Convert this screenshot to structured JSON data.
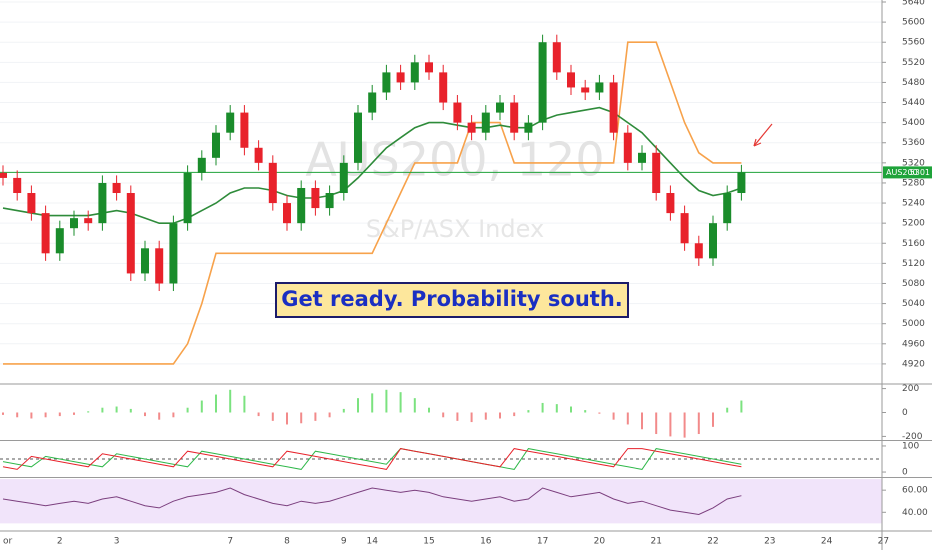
{
  "chart_data": [
    {
      "type": "candlestick",
      "title": "AUS200, 120",
      "subtitle": "S&P/ASX Index",
      "annotation": "Get ready. Probability south.",
      "categories": [
        "or",
        null,
        null,
        null,
        "2",
        null,
        null,
        null,
        "3",
        null,
        null,
        null,
        null,
        null,
        null,
        null,
        "7",
        null,
        null,
        null,
        "8",
        null,
        null,
        null,
        "9",
        null,
        "14",
        null,
        null,
        null,
        "15",
        null,
        null,
        null,
        "16",
        null,
        null,
        null,
        "17",
        null,
        null,
        null,
        "20",
        null,
        null,
        null,
        "21",
        null,
        null,
        null,
        "22",
        null,
        null,
        null,
        "23",
        null,
        null,
        null,
        "24",
        null,
        null,
        null,
        "27"
      ],
      "open": [
        5300,
        5290,
        5260,
        5220,
        5140,
        5190,
        5210,
        5200,
        5280,
        5260,
        5100,
        5150,
        5080,
        5200,
        5300,
        5330,
        5380,
        5420,
        5350,
        5320,
        5240,
        5200,
        5270,
        5230,
        5260,
        5320,
        5420,
        5460,
        5500,
        5480,
        5520,
        5500,
        5440,
        5400,
        5380,
        5420,
        5440,
        5380,
        5400,
        5560,
        5500,
        5470,
        5460,
        5480,
        5380,
        5320,
        5340,
        5260,
        5220,
        5160,
        5130,
        5200,
        5260,
        null,
        null,
        null,
        null,
        null,
        null,
        null,
        null,
        null,
        null
      ],
      "high": [
        5315,
        5305,
        5275,
        5235,
        5205,
        5225,
        5225,
        5295,
        5295,
        5275,
        5165,
        5165,
        5215,
        5315,
        5345,
        5395,
        5435,
        5435,
        5365,
        5335,
        5255,
        5285,
        5285,
        5275,
        5335,
        5435,
        5475,
        5515,
        5515,
        5535,
        5535,
        5515,
        5455,
        5415,
        5435,
        5455,
        5455,
        5415,
        5575,
        5575,
        5515,
        5485,
        5495,
        5495,
        5395,
        5355,
        5355,
        5275,
        5235,
        5175,
        5215,
        5275,
        5316,
        null,
        null,
        null,
        null,
        null,
        null,
        null,
        null,
        null,
        null
      ],
      "low": [
        5275,
        5245,
        5205,
        5125,
        5125,
        5175,
        5185,
        5185,
        5245,
        5085,
        5085,
        5065,
        5065,
        5185,
        5285,
        5315,
        5365,
        5335,
        5305,
        5225,
        5185,
        5185,
        5215,
        5215,
        5245,
        5305,
        5405,
        5445,
        5465,
        5465,
        5485,
        5425,
        5385,
        5365,
        5365,
        5405,
        5365,
        5365,
        5385,
        5485,
        5455,
        5445,
        5445,
        5365,
        5305,
        5305,
        5245,
        5205,
        5145,
        5115,
        5115,
        5185,
        5245,
        null,
        null,
        null,
        null,
        null,
        null,
        null,
        null,
        null,
        null
      ],
      "close": [
        5290,
        5260,
        5220,
        5140,
        5190,
        5210,
        5200,
        5280,
        5260,
        5100,
        5150,
        5080,
        5200,
        5300,
        5330,
        5380,
        5420,
        5350,
        5320,
        5240,
        5200,
        5270,
        5230,
        5260,
        5320,
        5420,
        5460,
        5500,
        5480,
        5520,
        5500,
        5440,
        5400,
        5380,
        5420,
        5440,
        5380,
        5400,
        5560,
        5500,
        5470,
        5460,
        5480,
        5380,
        5320,
        5340,
        5260,
        5220,
        5160,
        5130,
        5200,
        5260,
        5301,
        null,
        null,
        null,
        null,
        null,
        null,
        null,
        null,
        null,
        null
      ],
      "up_color": "#1a8c2b",
      "down_color": "#e8222b",
      "lines": [
        {
          "color": "#f7a24b",
          "values": [
            4920,
            4920,
            4920,
            4920,
            4920,
            4920,
            4920,
            4920,
            4920,
            4920,
            4920,
            4920,
            4920,
            4960,
            5040,
            5140,
            5140,
            5140,
            5140,
            5140,
            5140,
            5140,
            5140,
            5140,
            5140,
            5140,
            5140,
            5200,
            5260,
            5320,
            5320,
            5320,
            5320,
            5400,
            5400,
            5400,
            5320,
            5320,
            5320,
            5320,
            5320,
            5320,
            5320,
            5320,
            5560,
            5560,
            5560,
            5480,
            5400,
            5340,
            5320,
            5320,
            5320,
            null,
            null,
            null,
            null,
            null,
            null,
            null,
            null,
            null,
            null
          ]
        },
        {
          "color": "#2e8b3a",
          "values": [
            5230,
            5225,
            5220,
            5215,
            5215,
            5215,
            5215,
            5220,
            5225,
            5220,
            5210,
            5200,
            5200,
            5210,
            5225,
            5240,
            5260,
            5270,
            5270,
            5265,
            5255,
            5250,
            5250,
            5255,
            5265,
            5290,
            5320,
            5350,
            5370,
            5390,
            5400,
            5400,
            5395,
            5390,
            5390,
            5395,
            5390,
            5390,
            5405,
            5415,
            5420,
            5425,
            5430,
            5420,
            5400,
            5380,
            5350,
            5320,
            5290,
            5265,
            5255,
            5260,
            5270,
            null,
            null,
            null,
            null,
            null,
            null,
            null,
            null,
            null,
            null
          ]
        }
      ],
      "last_symbol": "AUS200",
      "last_price": 5301,
      "last_color": "#1fa33a",
      "ylim": [
        4882,
        5644
      ],
      "yticks": [
        5640,
        5600,
        5560,
        5520,
        5480,
        5440,
        5400,
        5360,
        5320,
        5280,
        5240,
        5200,
        5160,
        5120,
        5080,
        5040,
        5000,
        4960,
        4920
      ],
      "grid": true
    },
    {
      "type": "histogram",
      "values": [
        -20,
        -40,
        -50,
        -40,
        -30,
        -20,
        10,
        40,
        50,
        30,
        -30,
        -60,
        -40,
        40,
        100,
        150,
        190,
        140,
        -30,
        -70,
        -100,
        -90,
        -70,
        -40,
        30,
        120,
        160,
        190,
        170,
        120,
        40,
        -40,
        -70,
        -80,
        -60,
        -50,
        -30,
        20,
        80,
        70,
        50,
        20,
        -10,
        -60,
        -100,
        -140,
        -180,
        -200,
        -210,
        -180,
        -120,
        40,
        100,
        null,
        null,
        null,
        null,
        null,
        null,
        null,
        null,
        null,
        null
      ],
      "up_color": "#7be27f",
      "down_color": "#f28a8a",
      "ylim": [
        -230,
        230
      ],
      "yticks": [
        200,
        0,
        -200
      ]
    },
    {
      "type": "line",
      "lines": [
        {
          "color": "#2fb84a",
          "values": [
            40,
            30,
            20,
            60,
            50,
            40,
            30,
            20,
            70,
            60,
            50,
            40,
            30,
            20,
            80,
            70,
            60,
            50,
            40,
            30,
            20,
            10,
            80,
            70,
            60,
            50,
            40,
            30,
            90,
            80,
            70,
            60,
            50,
            40,
            30,
            20,
            10,
            90,
            80,
            70,
            60,
            50,
            40,
            30,
            20,
            10,
            90,
            80,
            70,
            60,
            50,
            40,
            30,
            null,
            null,
            null,
            null,
            null,
            null,
            null,
            null,
            null,
            null
          ]
        },
        {
          "color": "#e8222b",
          "values": [
            20,
            10,
            60,
            50,
            40,
            30,
            20,
            70,
            60,
            50,
            40,
            30,
            20,
            80,
            70,
            60,
            50,
            40,
            30,
            20,
            80,
            70,
            60,
            50,
            40,
            30,
            20,
            10,
            90,
            80,
            70,
            60,
            50,
            40,
            30,
            20,
            90,
            80,
            70,
            60,
            50,
            40,
            30,
            20,
            90,
            90,
            80,
            70,
            60,
            50,
            40,
            30,
            20,
            null,
            null,
            null,
            null,
            null,
            null,
            null,
            null,
            null,
            null
          ]
        }
      ],
      "ref_line": 50,
      "ylim": [
        -19,
        119
      ],
      "yticks": [
        100,
        0
      ]
    },
    {
      "type": "line",
      "lines": [
        {
          "color": "#7b3f7e",
          "values": [
            52,
            50,
            48,
            46,
            48,
            50,
            48,
            52,
            54,
            50,
            46,
            44,
            50,
            54,
            56,
            58,
            62,
            56,
            52,
            48,
            46,
            50,
            48,
            50,
            54,
            58,
            62,
            60,
            58,
            60,
            58,
            54,
            52,
            50,
            52,
            54,
            50,
            52,
            62,
            58,
            54,
            56,
            58,
            52,
            48,
            50,
            46,
            42,
            40,
            38,
            44,
            52,
            55,
            null,
            null,
            null,
            null,
            null,
            null,
            null,
            null,
            null,
            null
          ]
        }
      ],
      "band": [
        70,
        30
      ],
      "band_color": "#f1e4fa",
      "ylim": [
        24,
        71
      ],
      "yticks": [
        {
          "value": 60,
          "label": "60.00"
        },
        {
          "value": 40,
          "label": "40.00"
        }
      ]
    }
  ]
}
